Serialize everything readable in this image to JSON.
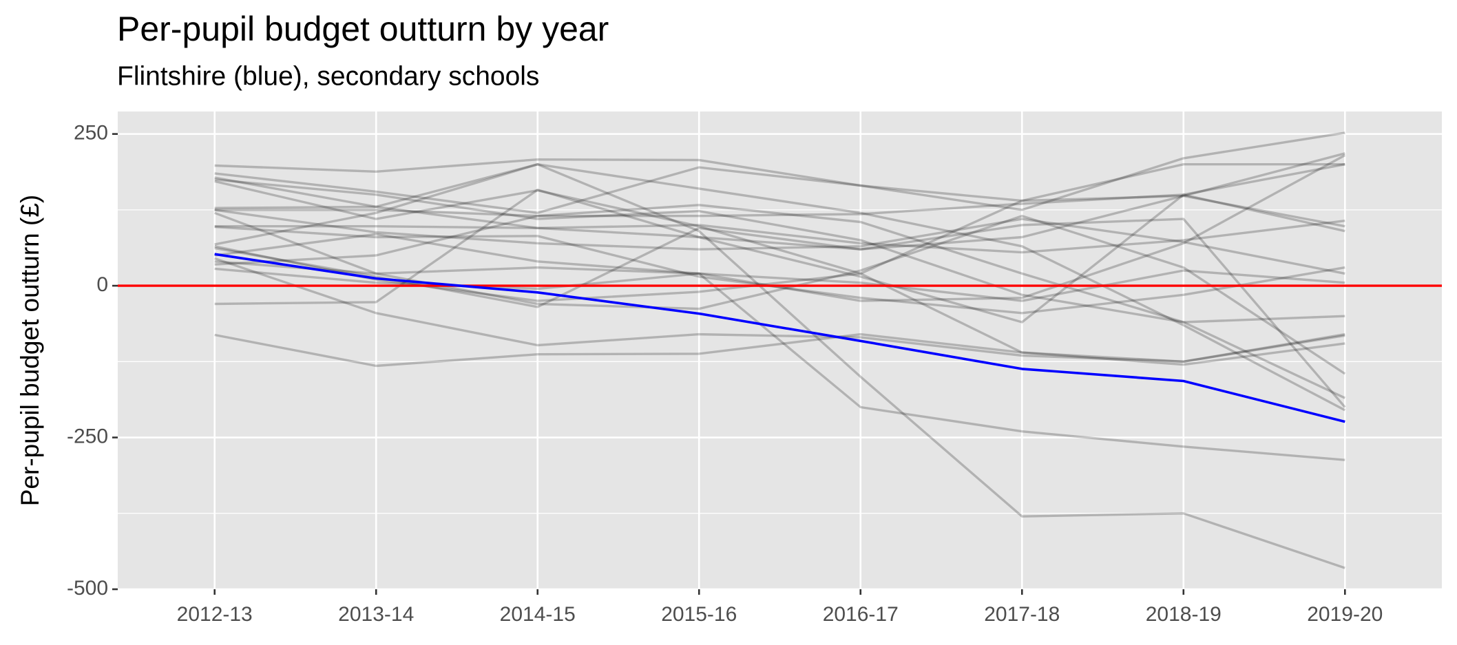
{
  "chart_data": {
    "type": "line",
    "title": "Per-pupil budget outturn by year",
    "subtitle": "Flintshire (blue), secondary schools",
    "y_label": "Per-pupil budget outturn (£)",
    "categories": [
      "2012-13",
      "2013-14",
      "2014-15",
      "2015-16",
      "2016-17",
      "2017-18",
      "2018-19",
      "2019-20"
    ],
    "ylim": [
      -500,
      287
    ],
    "yticks": [
      -500,
      -250,
      0,
      250
    ],
    "minor_yticks": [
      -375,
      -125,
      125
    ],
    "grid": true,
    "reference_line": {
      "value": 0,
      "color": "#ff0000"
    },
    "series": [
      {
        "color": "#000000",
        "alpha": 0.22,
        "values": [
          198,
          188,
          208,
          207,
          165,
          140,
          148,
          98
        ]
      },
      {
        "color": "#000000",
        "alpha": 0.22,
        "values": [
          185,
          155,
          120,
          195,
          165,
          125,
          210,
          252
        ]
      },
      {
        "color": "#000000",
        "alpha": 0.22,
        "values": [
          178,
          130,
          200,
          160,
          120,
          65,
          -65,
          -205
        ]
      },
      {
        "color": "#000000",
        "alpha": 0.22,
        "values": [
          172,
          110,
          157,
          98,
          20,
          -110,
          -125,
          -82
        ]
      },
      {
        "color": "#000000",
        "alpha": 0.22,
        "values": [
          125,
          125,
          115,
          115,
          118,
          135,
          150,
          90
        ]
      },
      {
        "color": "#000000",
        "alpha": 0.22,
        "values": [
          125,
          88,
          70,
          60,
          65,
          110,
          72,
          20
        ]
      },
      {
        "color": "#000000",
        "alpha": 0.22,
        "values": [
          98,
          98,
          95,
          100,
          70,
          55,
          75,
          107
        ]
      },
      {
        "color": "#000000",
        "alpha": 0.22,
        "values": [
          97,
          80,
          82,
          15,
          -20,
          -45,
          -15,
          30
        ]
      },
      {
        "color": "#000000",
        "alpha": 0.22,
        "values": [
          68,
          120,
          200,
          90,
          -150,
          -380,
          -375,
          -465
        ]
      },
      {
        "color": "#000000",
        "alpha": 0.22,
        "values": [
          62,
          15,
          -35,
          95,
          60,
          80,
          148,
          218
        ]
      },
      {
        "color": "#000000",
        "alpha": 0.22,
        "values": [
          40,
          20,
          30,
          20,
          -200,
          -240,
          -265,
          -287
        ]
      },
      {
        "color": "#000000",
        "alpha": 0.22,
        "values": [
          35,
          50,
          115,
          133,
          105,
          20,
          -60,
          -185
        ]
      },
      {
        "color": "#000000",
        "alpha": 0.22,
        "values": [
          28,
          5,
          -5,
          20,
          5,
          -25,
          25,
          5
        ]
      },
      {
        "color": "#000000",
        "alpha": 0.22,
        "values": [
          -30,
          -27,
          158,
          80,
          15,
          -60,
          150,
          200
        ]
      },
      {
        "color": "#000000",
        "alpha": 0.22,
        "values": [
          -81,
          -132,
          -113,
          -112,
          -80,
          -110,
          -130,
          -95
        ]
      },
      {
        "color": "#000000",
        "alpha": 0.22,
        "values": [
          45,
          -45,
          -98,
          -80,
          -85,
          -115,
          -125,
          -80
        ]
      },
      {
        "color": "#000000",
        "alpha": 0.22,
        "values": [
          65,
          10,
          -25,
          -10,
          20,
          140,
          200,
          200
        ]
      },
      {
        "color": "#000000",
        "alpha": 0.22,
        "values": [
          120,
          20,
          -30,
          -38,
          25,
          115,
          30,
          -145
        ]
      },
      {
        "color": "#000000",
        "alpha": 0.22,
        "values": [
          175,
          150,
          110,
          123,
          75,
          -15,
          -60,
          -50
        ]
      },
      {
        "color": "#000000",
        "alpha": 0.22,
        "values": [
          128,
          130,
          95,
          80,
          60,
          100,
          110,
          -200
        ]
      },
      {
        "color": "#000000",
        "alpha": 0.22,
        "values": [
          50,
          85,
          40,
          20,
          -25,
          -20,
          70,
          215
        ]
      },
      {
        "color": "#0000ff",
        "alpha": 1,
        "values": [
          52,
          12,
          -11,
          -46,
          -91,
          -137,
          -157,
          -224
        ]
      }
    ]
  }
}
